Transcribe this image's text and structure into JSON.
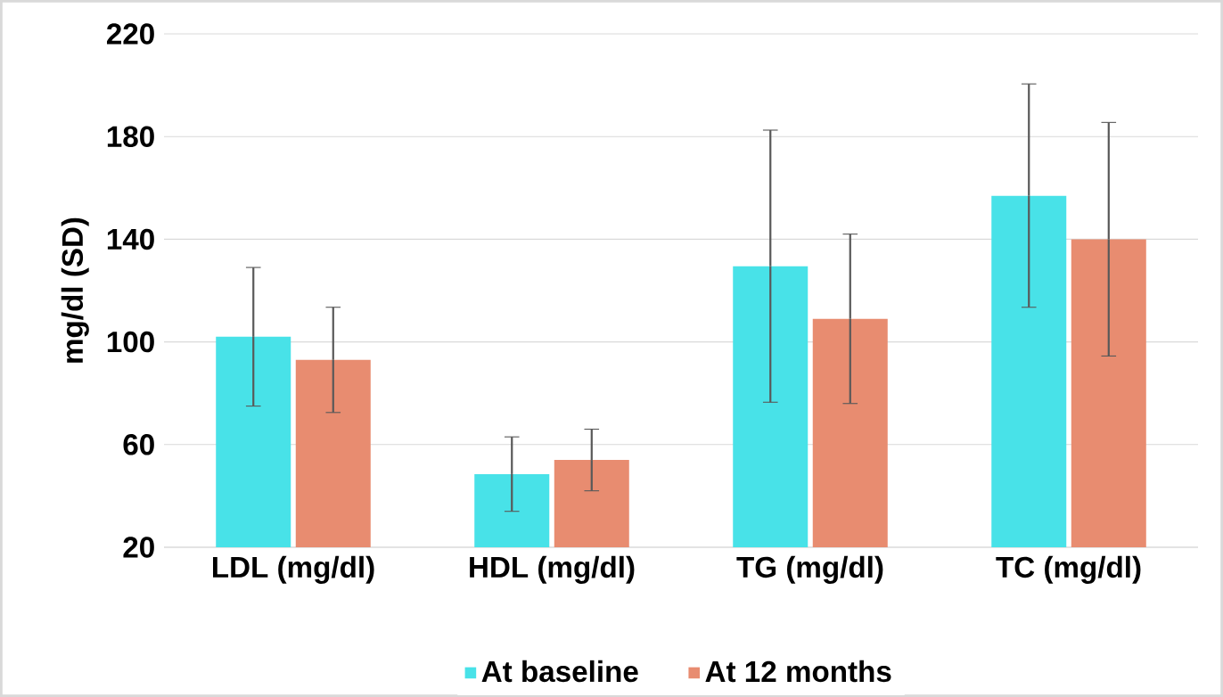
{
  "chart_data": {
    "type": "bar",
    "ylabel": "mg/dl (SD)",
    "categories": [
      "LDL (mg/dl)",
      "HDL (mg/dl)",
      "TG (mg/dl)",
      "TC (mg/dl)"
    ],
    "series": [
      {
        "name": "At baseline",
        "color": "#48e2e8",
        "values": [
          102,
          48.5,
          129.5,
          157
        ],
        "errors": [
          27,
          14.5,
          53,
          43.5
        ]
      },
      {
        "name": "At 12 months",
        "color": "#e88c70",
        "values": [
          93,
          54,
          109,
          140
        ],
        "errors": [
          20.5,
          12,
          33,
          45.5
        ]
      }
    ],
    "ylim": [
      20,
      220
    ],
    "yticks": [
      20,
      60,
      100,
      140,
      180,
      220
    ],
    "grid": "y",
    "legend": "bottom"
  }
}
